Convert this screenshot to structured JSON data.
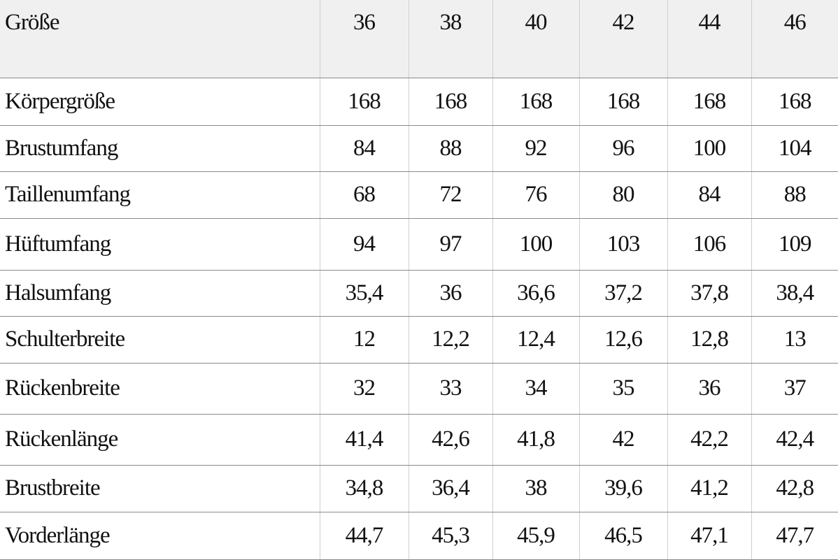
{
  "table": {
    "header": [
      "Größe",
      "36",
      "38",
      "40",
      "42",
      "44",
      "46"
    ],
    "rows": [
      [
        "Körpergröße",
        "168",
        "168",
        "168",
        "168",
        "168",
        "168"
      ],
      [
        "Brustumfang",
        "84",
        "88",
        "92",
        "96",
        "100",
        "104"
      ],
      [
        "Taillenumfang",
        "68",
        "72",
        "76",
        "80",
        "84",
        "88"
      ],
      [
        "Hüftumfang",
        "94",
        "97",
        "100",
        "103",
        "106",
        "109"
      ],
      [
        "Halsumfang",
        "35,4",
        "36",
        "36,6",
        "37,2",
        "37,8",
        "38,4"
      ],
      [
        "Schulterbreite",
        "12",
        "12,2",
        "12,4",
        "12,6",
        "12,8",
        "13"
      ],
      [
        "Rückenbreite",
        "32",
        "33",
        "34",
        "35",
        "36",
        "37"
      ],
      [
        "Rückenlänge",
        "41,4",
        "42,6",
        "41,8",
        "42",
        "42,2",
        "42,4"
      ],
      [
        "Brustbreite",
        "34,8",
        "36,4",
        "38",
        "39,6",
        "41,2",
        "42,8"
      ],
      [
        "Vorderlänge",
        "44,7",
        "45,3",
        "45,9",
        "46,5",
        "47,1",
        "47,7"
      ]
    ]
  }
}
